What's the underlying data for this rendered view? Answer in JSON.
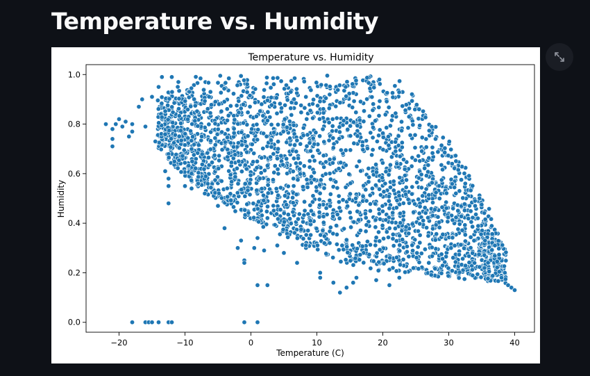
{
  "page": {
    "title": "Temperature vs. Humidity"
  },
  "controls": {
    "expand_icon": "fullscreen-expand-icon"
  },
  "colors": {
    "background": "#0e1117",
    "point": "#1f77b4",
    "point_edge": "#ffffff"
  },
  "chart_data": {
    "type": "scatter",
    "title": "Temperature vs. Humidity",
    "xlabel": "Temperature (C)",
    "ylabel": "Humidity",
    "xlim": [
      -25,
      43
    ],
    "ylim": [
      -0.04,
      1.04
    ],
    "xticks": [
      -20,
      -10,
      0,
      10,
      20,
      30,
      40
    ],
    "yticks": [
      0.0,
      0.2,
      0.4,
      0.6,
      0.8,
      1.0
    ],
    "xtick_labels": [
      "−20",
      "−10",
      "0",
      "10",
      "20",
      "30",
      "40"
    ],
    "ytick_labels": [
      "0.0",
      "0.2",
      "0.4",
      "0.6",
      "0.8",
      "1.0"
    ],
    "grid": false,
    "legend": "none",
    "dense_region": {
      "description_humidity_upper": 1.0,
      "lower_boundary": [
        [
          -14,
          0.7
        ],
        [
          -10,
          0.58
        ],
        [
          -6,
          0.5
        ],
        [
          -2,
          0.44
        ],
        [
          2,
          0.38
        ],
        [
          6,
          0.33
        ],
        [
          10,
          0.28
        ],
        [
          14,
          0.24
        ],
        [
          18,
          0.21
        ],
        [
          22,
          0.2
        ],
        [
          26,
          0.19
        ],
        [
          30,
          0.18
        ],
        [
          34,
          0.17
        ],
        [
          37,
          0.16
        ],
        [
          38.5,
          0.15
        ]
      ],
      "upper_boundary": [
        [
          -14,
          0.9
        ],
        [
          -10,
          0.97
        ],
        [
          -8,
          1.0
        ],
        [
          21,
          1.0
        ],
        [
          24,
          0.94
        ],
        [
          27,
          0.85
        ],
        [
          30,
          0.75
        ],
        [
          32,
          0.65
        ],
        [
          34,
          0.55
        ],
        [
          36,
          0.45
        ],
        [
          38,
          0.35
        ],
        [
          39.5,
          0.22
        ]
      ]
    },
    "points": [
      {
        "x": -22,
        "y": 0.8
      },
      {
        "x": -21,
        "y": 0.78
      },
      {
        "x": -21,
        "y": 0.74
      },
      {
        "x": -21,
        "y": 0.71
      },
      {
        "x": -20.5,
        "y": 0.8
      },
      {
        "x": -20,
        "y": 0.82
      },
      {
        "x": -19.5,
        "y": 0.79
      },
      {
        "x": -19,
        "y": 0.81
      },
      {
        "x": -18.5,
        "y": 0.75
      },
      {
        "x": -18,
        "y": 0.77
      },
      {
        "x": -18,
        "y": 0.8
      },
      {
        "x": -17,
        "y": 0.87
      },
      {
        "x": -16.5,
        "y": 0.9
      },
      {
        "x": -16,
        "y": 0.79
      },
      {
        "x": -15,
        "y": 0.91
      },
      {
        "x": -14.5,
        "y": 0.73
      },
      {
        "x": -14,
        "y": 0.95
      },
      {
        "x": -13.5,
        "y": 0.99
      },
      {
        "x": -13,
        "y": 0.61
      },
      {
        "x": -12.5,
        "y": 0.58
      },
      {
        "x": -12.5,
        "y": 0.55
      },
      {
        "x": -12.5,
        "y": 0.48
      },
      {
        "x": -12,
        "y": 0.99
      },
      {
        "x": -11,
        "y": 0.97
      },
      {
        "x": -10,
        "y": 0.55
      },
      {
        "x": -9,
        "y": 0.54
      },
      {
        "x": -8,
        "y": 0.56
      },
      {
        "x": -7,
        "y": 0.52
      },
      {
        "x": -5,
        "y": 0.47
      },
      {
        "x": -4,
        "y": 0.38
      },
      {
        "x": -2,
        "y": 0.3
      },
      {
        "x": -1.5,
        "y": 0.33
      },
      {
        "x": -1,
        "y": 0.25
      },
      {
        "x": -1,
        "y": 0.24
      },
      {
        "x": 0.5,
        "y": 0.3
      },
      {
        "x": 1,
        "y": 0.34
      },
      {
        "x": 1,
        "y": 0.15
      },
      {
        "x": 2.5,
        "y": 0.15
      },
      {
        "x": 2,
        "y": 0.29
      },
      {
        "x": 4,
        "y": 0.31
      },
      {
        "x": 5,
        "y": 0.28
      },
      {
        "x": 7,
        "y": 0.24
      },
      {
        "x": 10.5,
        "y": 0.18
      },
      {
        "x": 10.5,
        "y": 0.2
      },
      {
        "x": 12.5,
        "y": 0.16
      },
      {
        "x": 13.5,
        "y": 0.12
      },
      {
        "x": 14.5,
        "y": 0.14
      },
      {
        "x": 15.5,
        "y": 0.16
      },
      {
        "x": 16,
        "y": 0.18
      },
      {
        "x": 19,
        "y": 0.17
      },
      {
        "x": 21,
        "y": 0.15
      },
      {
        "x": 22.5,
        "y": 0.18
      },
      {
        "x": 25.5,
        "y": 0.86
      },
      {
        "x": 28,
        "y": 0.74
      },
      {
        "x": 30.5,
        "y": 0.64
      },
      {
        "x": 32.5,
        "y": 0.56
      },
      {
        "x": 34,
        "y": 0.47
      },
      {
        "x": 35.5,
        "y": 0.33
      },
      {
        "x": 37,
        "y": 0.31
      },
      {
        "x": 38,
        "y": 0.18
      },
      {
        "x": 38.5,
        "y": 0.2
      },
      {
        "x": 39,
        "y": 0.15
      },
      {
        "x": 39.5,
        "y": 0.14
      },
      {
        "x": 40,
        "y": 0.13
      },
      {
        "x": -18,
        "y": 0.0
      },
      {
        "x": -16,
        "y": 0.0
      },
      {
        "x": -15.5,
        "y": 0.0
      },
      {
        "x": -15,
        "y": 0.0
      },
      {
        "x": -14,
        "y": 0.0
      },
      {
        "x": -12.5,
        "y": 0.0
      },
      {
        "x": -12,
        "y": 0.0
      },
      {
        "x": -1,
        "y": 0.0
      },
      {
        "x": 1,
        "y": 0.0
      }
    ]
  }
}
